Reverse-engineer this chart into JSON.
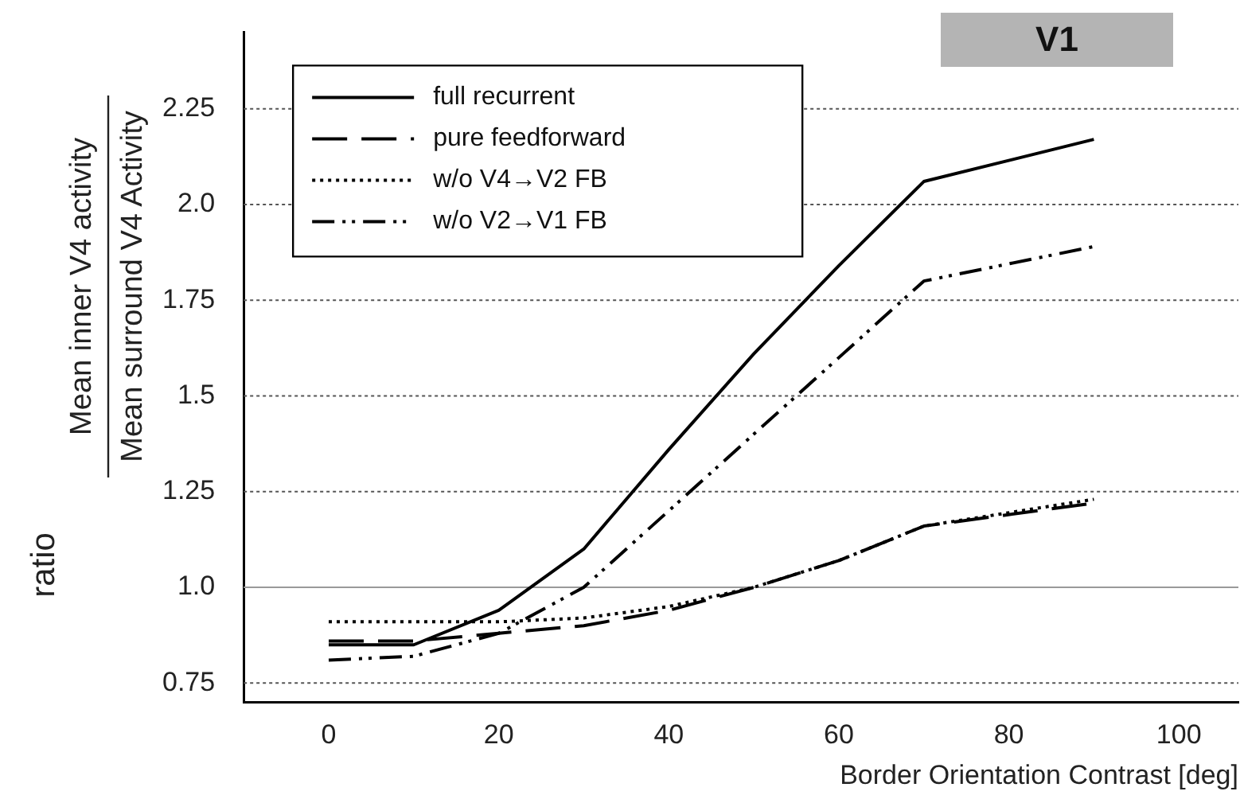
{
  "chart_data": {
    "type": "line",
    "ylabel": "ratio",
    "xlabel": "Border Orientation Contrast [deg]",
    "x": [
      0,
      10,
      20,
      30,
      40,
      50,
      60,
      70,
      90
    ],
    "series": [
      {
        "name": "full recurrent",
        "color": "#000000",
        "line_style": "solid",
        "values": [
          0.85,
          0.85,
          0.94,
          1.1,
          1.36,
          1.61,
          1.84,
          2.06,
          2.17
        ]
      },
      {
        "name": "pure feedforward",
        "color": "#000000",
        "line_style": "dashed",
        "values": [
          0.86,
          0.86,
          0.88,
          0.9,
          0.94,
          1.0,
          1.07,
          1.16,
          1.22
        ]
      },
      {
        "name": "w/o V4→V2 FB",
        "color": "#000000",
        "line_style": "dotted",
        "values": [
          0.91,
          0.91,
          0.91,
          0.92,
          0.95,
          1.0,
          1.07,
          1.16,
          1.23
        ]
      },
      {
        "name": "w/o V2→V1 FB",
        "color": "#000000",
        "line_style": "dashdot",
        "values": [
          0.81,
          0.82,
          0.88,
          1.0,
          1.2,
          1.4,
          1.6,
          1.8,
          1.89
        ]
      }
    ],
    "xlim": [
      -10,
      107
    ],
    "ylim": [
      0.7,
      2.45
    ],
    "xticks": [
      0,
      20,
      40,
      60,
      80,
      100
    ],
    "yticks": [
      0.75,
      {
        "value": 1.0,
        "label": "1.0"
      },
      1.25,
      1.5,
      1.75,
      {
        "value": 2.0,
        "label": "2.0"
      },
      2.25
    ],
    "grid": "y",
    "legend": "top left",
    "marker": "none",
    "ref_lines": [
      {
        "axis": "y",
        "value": 1.0,
        "color": "#999999",
        "line_style": "solid"
      }
    ],
    "annotations": [
      "Mean inner V4 activity",
      "Mean surround V4 Activity",
      "V1"
    ]
  }
}
